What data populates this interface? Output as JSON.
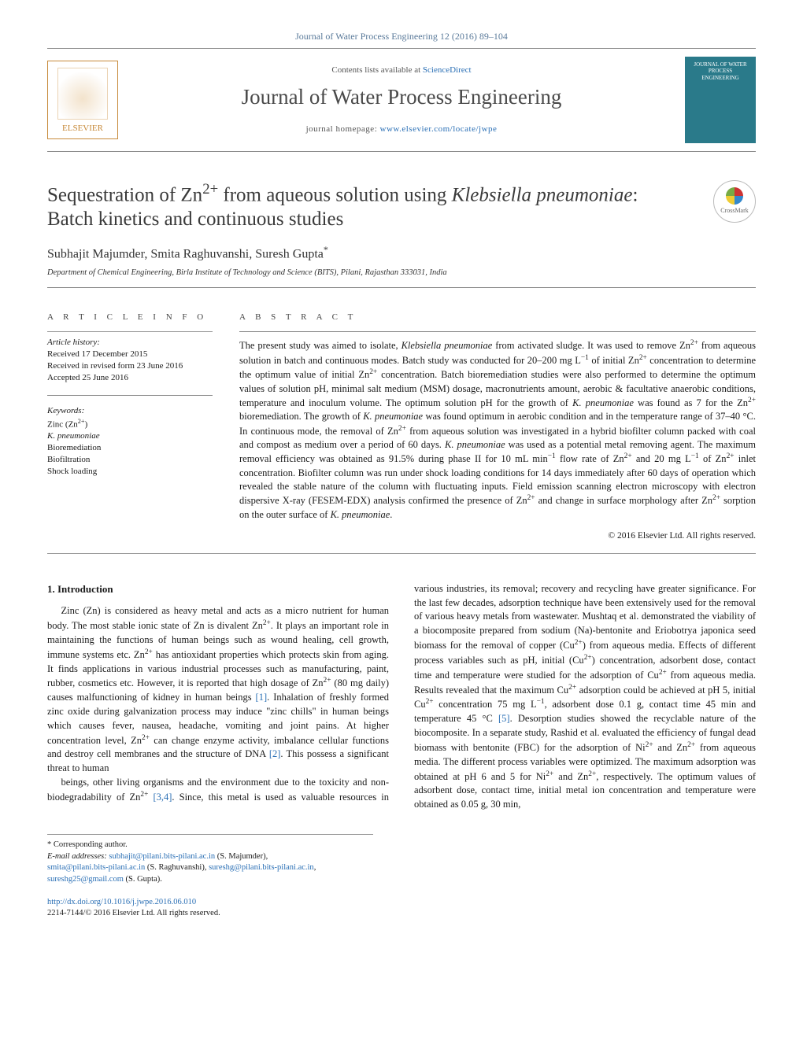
{
  "header": {
    "citation": "Journal of Water Process Engineering 12 (2016) 89–104",
    "contents_line_pre": "Contents lists available at ",
    "contents_link": "ScienceDirect",
    "journal_title": "Journal of Water Process Engineering",
    "homepage_pre": "journal homepage: ",
    "homepage_link": "www.elsevier.com/locate/jwpe",
    "elsevier_label": "ELSEVIER",
    "cover_text": "JOURNAL OF WATER PROCESS ENGINEERING"
  },
  "article": {
    "title_pre": "Sequestration of Zn",
    "title_sup1": "2+",
    "title_mid1": " from aqueous solution using ",
    "title_species": "Klebsiella pneumoniae",
    "title_post": ": Batch kinetics and continuous studies",
    "crossmark": "CrossMark"
  },
  "authors": {
    "line": "Subhajit Majumder, Smita Raghuvanshi, Suresh Gupta",
    "star": "*",
    "affiliation": "Department of Chemical Engineering, Birla Institute of Technology and Science (BITS), Pilani, Rajasthan 333031, India"
  },
  "article_info": {
    "heading": "a r t i c l e   i n f o",
    "history_head": "Article history:",
    "received": "Received 17 December 2015",
    "revised": "Received in revised form 23 June 2016",
    "accepted": "Accepted 25 June 2016",
    "keywords_head": "Keywords:",
    "kw1_pre": "Zinc (Zn",
    "kw1_sup": "2+",
    "kw1_post": ")",
    "kw2": "K. pneumoniae",
    "kw3": "Bioremediation",
    "kw4": "Biofiltration",
    "kw5": "Shock loading"
  },
  "abstract": {
    "heading": "a b s t r a c t",
    "text_parts": {
      "p1": "The present study was aimed to isolate, ",
      "sp1": "Klebsiella pneumoniae",
      "p2": " from activated sludge. It was used to remove Zn",
      "sup1": "2+",
      "p3": " from aqueous solution in batch and continuous modes. Batch study was conducted for 20–200 mg L",
      "supn1": "−1",
      "p4": " of initial Zn",
      "sup2": "2+",
      "p5": " concentration to determine the optimum value of initial Zn",
      "sup3": "2+",
      "p6": " concentration. Batch bioremediation studies were also performed to determine the optimum values of solution pH, minimal salt medium (MSM) dosage, macronutrients amount, aerobic & facultative anaerobic conditions, temperature and inoculum volume. The optimum solution pH for the growth of ",
      "sp2": "K. pneumoniae",
      "p7": " was found as 7 for the Zn",
      "sup4": "2+",
      "p8": " bioremediation. The growth of ",
      "sp3": "K. pneumoniae",
      "p9": " was found optimum in aerobic condition and in the temperature range of 37–40 °C. In continuous mode, the removal of Zn",
      "sup5": "2+",
      "p10": " from aqueous solution was investigated in a hybrid biofilter column packed with coal and compost as medium over a period of 60 days. ",
      "sp4": "K. pneumoniae",
      "p11": " was used as a potential metal removing agent. The maximum removal efficiency was obtained as 91.5% during phase II for 10 mL min",
      "supn2": "−1",
      "p12": " flow rate of Zn",
      "sup6": "2+",
      "p13": " and 20 mg L",
      "supn3": "−1",
      "p14": " of Zn",
      "sup7": "2+",
      "p15": " inlet concentration. Biofilter column was run under shock loading conditions for 14 days immediately after 60 days of operation which revealed the stable nature of the column with fluctuating inputs. Field emission scanning electron microscopy with electron dispersive X-ray (FESEM-EDX) analysis confirmed the presence of Zn",
      "sup8": "2+",
      "p16": " and change in surface morphology after Zn",
      "sup9": "2+",
      "p17": " sorption on the outer surface of ",
      "sp5": "K. pneumoniae",
      "p18": "."
    },
    "copyright": "© 2016 Elsevier Ltd. All rights reserved."
  },
  "body": {
    "section1_head": "1.  Introduction",
    "para1": "Zinc (Zn) is considered as heavy metal and acts as a micro nutrient for human body. The most stable ionic state of Zn is divalent Zn2+. It plays an important role in maintaining the functions of human beings such as wound healing, cell growth, immune systems etc. Zn2+ has antioxidant properties which protects skin from aging. It finds applications in various industrial processes such as manufacturing, paint, rubber, cosmetics etc. However, it is reported that high dosage of Zn2+ (80 mg daily) causes malfunctioning of kidney in human beings [1]. Inhalation of freshly formed zinc oxide during galvanization process may induce \"zinc chills\" in human beings which causes fever, nausea, headache, vomiting and joint pains. At higher concentration level, Zn2+ can change enzyme activity, imbalance cellular functions and destroy cell membranes and the structure of DNA [2]. This possess a significant threat to human",
    "para2": "beings, other living organisms and the environment due to the toxicity and non-biodegradability of Zn2+ [3,4]. Since, this metal is used as valuable resources in various industries, its removal; recovery and recycling have greater significance. For the last few decades, adsorption technique have been extensively used for the removal of various heavy metals from wastewater. Mushtaq et al. demonstrated the viability of a biocomposite prepared from sodium (Na)-bentonite and Eriobotrya japonica seed biomass for the removal of copper (Cu2+) from aqueous media. Effects of different process variables such as pH, initial (Cu2+) concentration, adsorbent dose, contact time and temperature were studied for the adsorption of Cu2+ from aqueous media. Results revealed that the maximum Cu2+ adsorption could be achieved at pH 5, initial Cu2+ concentration 75 mg L−1, adsorbent dose 0.1 g, contact time 45 min and temperature 45 °C [5]. Desorption studies showed the recyclable nature of the biocomposite. In a separate study, Rashid et al. evaluated the efficiency of fungal dead biomass with bentonite (FBC) for the adsorption of Ni2+ and Zn2+ from aqueous media. The different process variables were optimized. The maximum adsorption was obtained at pH 6 and 5 for Ni2+ and Zn2+, respectively. The optimum values of adsorbent dose, contact time, initial metal ion concentration and temperature were obtained as 0.05 g, 30 min,"
  },
  "footer": {
    "corr": "* Corresponding author.",
    "email_label": "E-mail addresses: ",
    "em1": "subhajit@pilani.bits-pilani.ac.in",
    "em1_who": " (S. Majumder), ",
    "em2": "smita@pilani.bits-pilani.ac.in",
    "em2_who": " (S. Raghuvanshi), ",
    "em3": "sureshg@pilani.bits-pilani.ac.in",
    "em3_sep": ", ",
    "em4": "sureshg25@gmail.com",
    "em4_who": " (S. Gupta).",
    "doi": "http://dx.doi.org/10.1016/j.jwpe.2016.06.010",
    "issn": "2214-7144/© 2016 Elsevier Ltd. All rights reserved."
  },
  "colors": {
    "link": "#2a6fb5",
    "text": "#1a1a1a",
    "muted": "#555",
    "rule": "#888"
  }
}
